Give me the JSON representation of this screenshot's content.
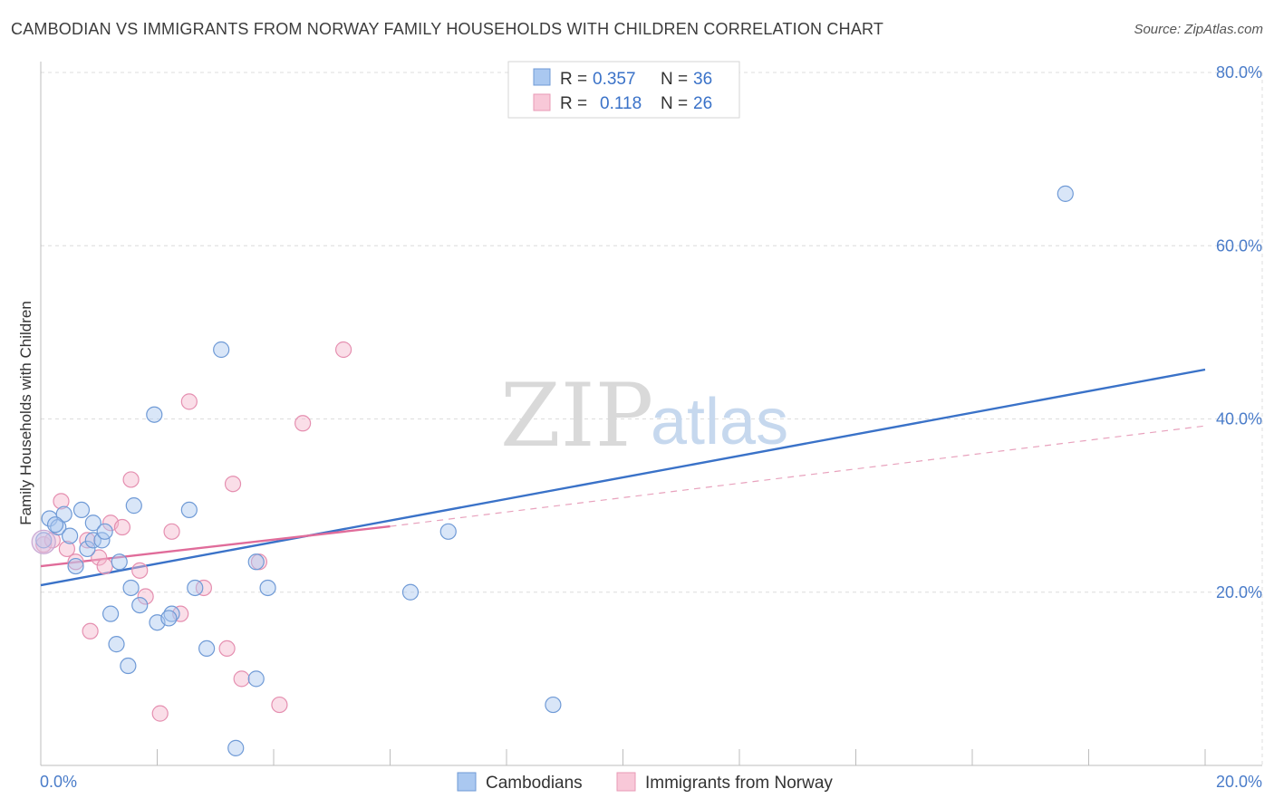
{
  "title": "CAMBODIAN VS IMMIGRANTS FROM NORWAY FAMILY HOUSEHOLDS WITH CHILDREN CORRELATION CHART",
  "source": "Source: ZipAtlas.com",
  "watermark": {
    "zip": "ZIP",
    "atlas": "atlas"
  },
  "colors": {
    "blue": "#3a72c8",
    "blue_fill": "#aac8f0",
    "pink": "#e06c9a",
    "pink_fill": "#f4b6cb",
    "grid": "#dcdcdc",
    "tick_label": "#4a7cc9"
  },
  "legend": {
    "rows": [
      {
        "r_label": "R =",
        "r_value": "0.357",
        "n_label": "N =",
        "n_value": "36"
      },
      {
        "r_label": "R =",
        "r_value": "0.118",
        "n_label": "N =",
        "n_value": "26"
      }
    ]
  },
  "chart_data": {
    "type": "scatter",
    "title": "CAMBODIAN VS IMMIGRANTS FROM NORWAY FAMILY HOUSEHOLDS WITH CHILDREN CORRELATION CHART",
    "xlabel": "",
    "ylabel": "Family Households with Children",
    "xlim": [
      0,
      20
    ],
    "ylim": [
      0,
      80
    ],
    "x_tick_labels": [
      "0.0%",
      "20.0%"
    ],
    "y_ticks": [
      20,
      40,
      60,
      80
    ],
    "y_tick_labels": [
      "20.0%",
      "40.0%",
      "60.0%",
      "80.0%"
    ],
    "grid": true,
    "legend_position": "bottom",
    "series": [
      {
        "name": "Cambodians",
        "color": "#3a72c8",
        "points": [
          [
            0.05,
            26.0
          ],
          [
            0.15,
            28.5
          ],
          [
            0.3,
            27.5
          ],
          [
            0.4,
            29.0
          ],
          [
            0.5,
            26.5
          ],
          [
            0.7,
            29.5
          ],
          [
            0.8,
            25.0
          ],
          [
            0.9,
            26.0
          ],
          [
            0.6,
            23.0
          ],
          [
            0.9,
            28.0
          ],
          [
            1.05,
            26.0
          ],
          [
            1.1,
            27.0
          ],
          [
            1.35,
            23.5
          ],
          [
            1.55,
            20.5
          ],
          [
            1.7,
            18.5
          ],
          [
            1.6,
            30.0
          ],
          [
            1.95,
            40.5
          ],
          [
            2.0,
            16.5
          ],
          [
            2.25,
            17.5
          ],
          [
            2.55,
            29.5
          ],
          [
            2.65,
            20.5
          ],
          [
            3.1,
            48.0
          ],
          [
            2.85,
            13.5
          ],
          [
            1.2,
            17.5
          ],
          [
            1.3,
            14.0
          ],
          [
            1.5,
            11.5
          ],
          [
            3.7,
            23.5
          ],
          [
            3.9,
            20.5
          ],
          [
            3.7,
            10.0
          ],
          [
            3.35,
            2.0
          ],
          [
            6.35,
            20.0
          ],
          [
            7.0,
            27.0
          ],
          [
            8.8,
            7.0
          ],
          [
            17.6,
            66.0
          ],
          [
            2.2,
            17.0
          ],
          [
            0.25,
            27.8
          ]
        ],
        "trend": {
          "x": [
            0,
            20
          ],
          "y": [
            20.8,
            45.7
          ]
        }
      },
      {
        "name": "Immigrants from Norway",
        "color": "#e06c9a",
        "points": [
          [
            0.05,
            25.5
          ],
          [
            0.2,
            26.0
          ],
          [
            0.35,
            30.5
          ],
          [
            0.45,
            25.0
          ],
          [
            0.6,
            23.5
          ],
          [
            0.8,
            26.0
          ],
          [
            1.0,
            24.0
          ],
          [
            1.1,
            23.0
          ],
          [
            1.2,
            28.0
          ],
          [
            1.4,
            27.5
          ],
          [
            1.55,
            33.0
          ],
          [
            1.7,
            22.5
          ],
          [
            1.8,
            19.5
          ],
          [
            2.25,
            27.0
          ],
          [
            2.4,
            17.5
          ],
          [
            2.55,
            42.0
          ],
          [
            2.8,
            20.5
          ],
          [
            3.2,
            13.5
          ],
          [
            3.3,
            32.5
          ],
          [
            3.45,
            10.0
          ],
          [
            3.75,
            23.5
          ],
          [
            4.1,
            7.0
          ],
          [
            4.5,
            39.5
          ],
          [
            5.2,
            48.0
          ],
          [
            2.05,
            6.0
          ],
          [
            0.85,
            15.5
          ]
        ],
        "trend": {
          "x": [
            0,
            6
          ],
          "y": [
            23.0,
            27.6
          ]
        },
        "trend_extended": {
          "x": [
            6,
            20
          ],
          "y": [
            27.6,
            39.2
          ]
        }
      }
    ]
  },
  "bottom_legend": [
    {
      "label": "Cambodians"
    },
    {
      "label": "Immigrants from Norway"
    }
  ]
}
